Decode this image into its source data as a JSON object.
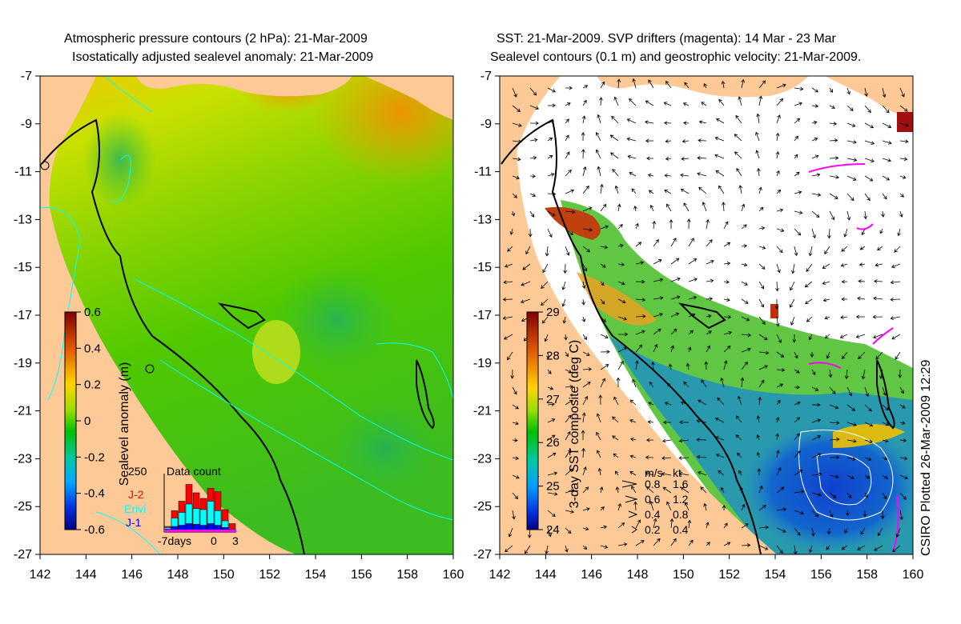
{
  "left_panel": {
    "title_line1": "Atmospheric pressure contours (2 hPa): 21-Mar-2009",
    "title_line2": "Isostatically adjusted sealevel anomaly: 21-Mar-2009",
    "y_ticks": [
      "-7",
      "-9",
      "-11",
      "-13",
      "-15",
      "-17",
      "-19",
      "-21",
      "-23",
      "-25",
      "-27"
    ],
    "x_ticks": [
      "142",
      "144",
      "146",
      "148",
      "150",
      "152",
      "154",
      "156",
      "158",
      "160"
    ],
    "colorbar": {
      "label": "Sealevel anomaly (m)",
      "ticks": [
        "0.6",
        "0.4",
        "0.2",
        "0",
        "-0.2",
        "-0.4",
        "-0.6"
      ]
    },
    "data_count": {
      "title": "Data count",
      "max_label": "250",
      "missions": [
        "J-2",
        "Envi",
        "J-1"
      ],
      "mission_colors": [
        "#ff0000",
        "#00ffff",
        "#0000ff"
      ],
      "x_labels": [
        "-7days",
        "0",
        "3"
      ],
      "bars": [
        {
          "red": 0.1,
          "cyan": 0.08,
          "blue": 0.05
        },
        {
          "red": 0.38,
          "cyan": 0.25,
          "blue": 0.1
        },
        {
          "red": 0.55,
          "cyan": 0.35,
          "blue": 0.12
        },
        {
          "red": 0.85,
          "cyan": 0.5,
          "blue": 0.15
        },
        {
          "red": 0.7,
          "cyan": 0.42,
          "blue": 0.14
        },
        {
          "red": 0.6,
          "cyan": 0.4,
          "blue": 0.12
        },
        {
          "red": 0.78,
          "cyan": 0.55,
          "blue": 0.15
        },
        {
          "red": 0.72,
          "cyan": 0.38,
          "blue": 0.12
        },
        {
          "red": 0.4,
          "cyan": 0.2,
          "blue": 0.08
        },
        {
          "red": 0.15,
          "cyan": 0.05,
          "blue": 0.03
        }
      ]
    }
  },
  "right_panel": {
    "title_line1": "SST: 21-Mar-2009. SVP drifters (magenta): 14 Mar - 23 Mar",
    "title_line2": "Sealevel contours (0.1 m) and geostrophic velocity: 21-Mar-2009.",
    "y_ticks": [
      "-7",
      "-9",
      "-11",
      "-13",
      "-15",
      "-17",
      "-19",
      "-21",
      "-23",
      "-25",
      "-27"
    ],
    "x_ticks": [
      "142",
      "144",
      "146",
      "148",
      "150",
      "152",
      "154",
      "156",
      "158",
      "160"
    ],
    "colorbar": {
      "label": "3-day SST composite (deg C)",
      "ticks": [
        "29",
        "28",
        "27",
        "26",
        "25",
        "24"
      ]
    },
    "velocity_legend": {
      "header_ms": "m/s",
      "header_kt": "kt",
      "rows": [
        {
          "ms": "0.8",
          "kt": "1.6"
        },
        {
          "ms": "0.6",
          "kt": "1.2"
        },
        {
          "ms": "0.4",
          "kt": "0.8"
        },
        {
          "ms": "0.2",
          "kt": "0.4"
        }
      ]
    }
  },
  "footer": "CSIRO Plotted 26-Mar-2009 12:29",
  "colors": {
    "land": "#fcc997",
    "drifters": "#ff00ff",
    "pressure_contours": "#00ffff"
  }
}
